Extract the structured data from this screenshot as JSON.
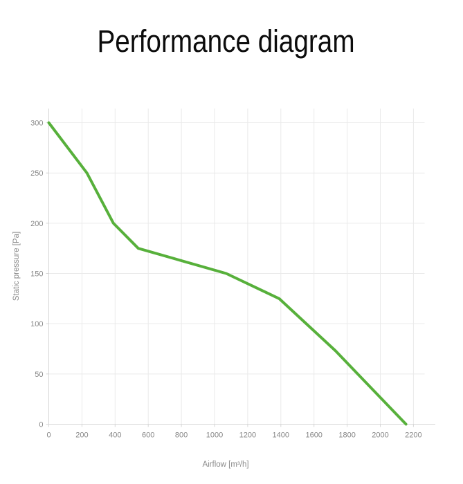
{
  "page": {
    "title": "Performance diagram"
  },
  "chart_data": {
    "type": "line",
    "title": "Performance diagram",
    "xlabel": "Airflow [m³/h]",
    "ylabel": "Static pressure [Pa]",
    "x_ticks": [
      0,
      200,
      400,
      600,
      800,
      1000,
      1200,
      1400,
      1600,
      1800,
      2000,
      2200
    ],
    "y_ticks": [
      0,
      50,
      100,
      150,
      200,
      250,
      300
    ],
    "xlim": [
      0,
      2270
    ],
    "ylim": [
      0,
      314
    ],
    "grid": true,
    "legend": "none",
    "line_color": "#57b03b",
    "points": [
      [
        0,
        300
      ],
      [
        230,
        250
      ],
      [
        390,
        200
      ],
      [
        540,
        175
      ],
      [
        1070,
        150
      ],
      [
        1390,
        125
      ],
      [
        1730,
        73
      ],
      [
        2155,
        0
      ]
    ]
  },
  "colors": {
    "background": "#ffffff",
    "grid": "#eaeaea",
    "axis": "#d6d6d6",
    "label": "#868686",
    "title": "#0c0c0c"
  }
}
